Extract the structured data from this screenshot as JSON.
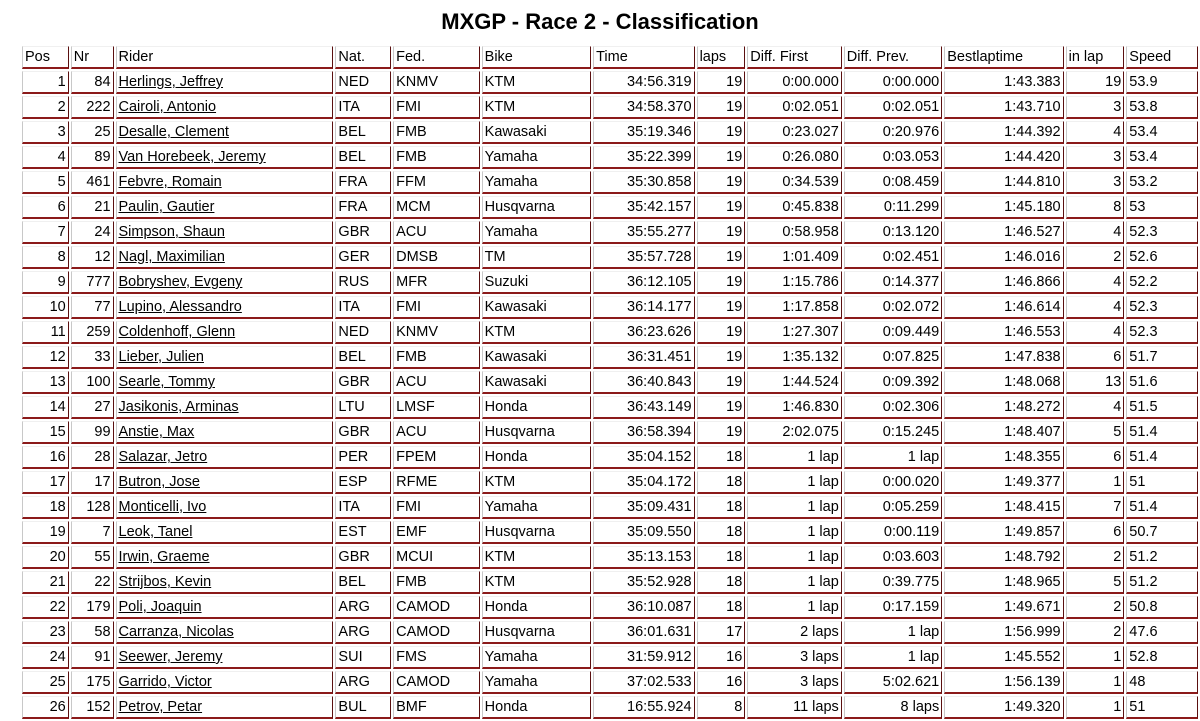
{
  "title": "MXGP - Race 2 - Classification",
  "columns": [
    "Pos",
    "Nr",
    "Rider",
    "Nat.",
    "Fed.",
    "Bike",
    "Time",
    "laps",
    "Diff. First",
    "Diff. Prev.",
    "Bestlaptime",
    "in lap",
    "Speed"
  ],
  "rows": [
    [
      "1",
      "84",
      "Herlings, Jeffrey",
      "NED",
      "KNMV",
      "KTM",
      "34:56.319",
      "19",
      "0:00.000",
      "0:00.000",
      "1:43.383",
      "19",
      "53.9"
    ],
    [
      "2",
      "222",
      "Cairoli, Antonio",
      "ITA",
      "FMI",
      "KTM",
      "34:58.370",
      "19",
      "0:02.051",
      "0:02.051",
      "1:43.710",
      "3",
      "53.8"
    ],
    [
      "3",
      "25",
      "Desalle, Clement",
      "BEL",
      "FMB",
      "Kawasaki",
      "35:19.346",
      "19",
      "0:23.027",
      "0:20.976",
      "1:44.392",
      "4",
      "53.4"
    ],
    [
      "4",
      "89",
      "Van Horebeek, Jeremy",
      "BEL",
      "FMB",
      "Yamaha",
      "35:22.399",
      "19",
      "0:26.080",
      "0:03.053",
      "1:44.420",
      "3",
      "53.4"
    ],
    [
      "5",
      "461",
      "Febvre, Romain",
      "FRA",
      "FFM",
      "Yamaha",
      "35:30.858",
      "19",
      "0:34.539",
      "0:08.459",
      "1:44.810",
      "3",
      "53.2"
    ],
    [
      "6",
      "21",
      "Paulin, Gautier",
      "FRA",
      "MCM",
      "Husqvarna",
      "35:42.157",
      "19",
      "0:45.838",
      "0:11.299",
      "1:45.180",
      "8",
      "53"
    ],
    [
      "7",
      "24",
      "Simpson, Shaun",
      "GBR",
      "ACU",
      "Yamaha",
      "35:55.277",
      "19",
      "0:58.958",
      "0:13.120",
      "1:46.527",
      "4",
      "52.3"
    ],
    [
      "8",
      "12",
      "Nagl, Maximilian",
      "GER",
      "DMSB",
      "TM",
      "35:57.728",
      "19",
      "1:01.409",
      "0:02.451",
      "1:46.016",
      "2",
      "52.6"
    ],
    [
      "9",
      "777",
      "Bobryshev, Evgeny",
      "RUS",
      "MFR",
      "Suzuki",
      "36:12.105",
      "19",
      "1:15.786",
      "0:14.377",
      "1:46.866",
      "4",
      "52.2"
    ],
    [
      "10",
      "77",
      "Lupino, Alessandro",
      "ITA",
      "FMI",
      "Kawasaki",
      "36:14.177",
      "19",
      "1:17.858",
      "0:02.072",
      "1:46.614",
      "4",
      "52.3"
    ],
    [
      "11",
      "259",
      "Coldenhoff, Glenn",
      "NED",
      "KNMV",
      "KTM",
      "36:23.626",
      "19",
      "1:27.307",
      "0:09.449",
      "1:46.553",
      "4",
      "52.3"
    ],
    [
      "12",
      "33",
      "Lieber, Julien",
      "BEL",
      "FMB",
      "Kawasaki",
      "36:31.451",
      "19",
      "1:35.132",
      "0:07.825",
      "1:47.838",
      "6",
      "51.7"
    ],
    [
      "13",
      "100",
      "Searle, Tommy",
      "GBR",
      "ACU",
      "Kawasaki",
      "36:40.843",
      "19",
      "1:44.524",
      "0:09.392",
      "1:48.068",
      "13",
      "51.6"
    ],
    [
      "14",
      "27",
      "Jasikonis, Arminas",
      "LTU",
      "LMSF",
      "Honda",
      "36:43.149",
      "19",
      "1:46.830",
      "0:02.306",
      "1:48.272",
      "4",
      "51.5"
    ],
    [
      "15",
      "99",
      "Anstie, Max",
      "GBR",
      "ACU",
      "Husqvarna",
      "36:58.394",
      "19",
      "2:02.075",
      "0:15.245",
      "1:48.407",
      "5",
      "51.4"
    ],
    [
      "16",
      "28",
      "Salazar, Jetro",
      "PER",
      "FPEM",
      "Honda",
      "35:04.152",
      "18",
      "1 lap",
      "1 lap",
      "1:48.355",
      "6",
      "51.4"
    ],
    [
      "17",
      "17",
      "Butron, Jose",
      "ESP",
      "RFME",
      "KTM",
      "35:04.172",
      "18",
      "1 lap",
      "0:00.020",
      "1:49.377",
      "1",
      "51"
    ],
    [
      "18",
      "128",
      "Monticelli, Ivo",
      "ITA",
      "FMI",
      "Yamaha",
      "35:09.431",
      "18",
      "1 lap",
      "0:05.259",
      "1:48.415",
      "7",
      "51.4"
    ],
    [
      "19",
      "7",
      "Leok, Tanel",
      "EST",
      "EMF",
      "Husqvarna",
      "35:09.550",
      "18",
      "1 lap",
      "0:00.119",
      "1:49.857",
      "6",
      "50.7"
    ],
    [
      "20",
      "55",
      "Irwin, Graeme",
      "GBR",
      "MCUI",
      "KTM",
      "35:13.153",
      "18",
      "1 lap",
      "0:03.603",
      "1:48.792",
      "2",
      "51.2"
    ],
    [
      "21",
      "22",
      "Strijbos, Kevin",
      "BEL",
      "FMB",
      "KTM",
      "35:52.928",
      "18",
      "1 lap",
      "0:39.775",
      "1:48.965",
      "5",
      "51.2"
    ],
    [
      "22",
      "179",
      "Poli, Joaquin",
      "ARG",
      "CAMOD",
      "Honda",
      "36:10.087",
      "18",
      "1 lap",
      "0:17.159",
      "1:49.671",
      "2",
      "50.8"
    ],
    [
      "23",
      "58",
      "Carranza, Nicolas",
      "ARG",
      "CAMOD",
      "Husqvarna",
      "36:01.631",
      "17",
      "2 laps",
      "1 lap",
      "1:56.999",
      "2",
      "47.6"
    ],
    [
      "24",
      "91",
      "Seewer, Jeremy",
      "SUI",
      "FMS",
      "Yamaha",
      "31:59.912",
      "16",
      "3 laps",
      "1 lap",
      "1:45.552",
      "1",
      "52.8"
    ],
    [
      "25",
      "175",
      "Garrido, Victor",
      "ARG",
      "CAMOD",
      "Yamaha",
      "37:02.533",
      "16",
      "3 laps",
      "5:02.621",
      "1:56.139",
      "1",
      "48"
    ],
    [
      "26",
      "152",
      "Petrov, Petar",
      "BUL",
      "BMF",
      "Honda",
      "16:55.924",
      "8",
      "11 laps",
      "8 laps",
      "1:49.320",
      "1",
      "51"
    ]
  ]
}
